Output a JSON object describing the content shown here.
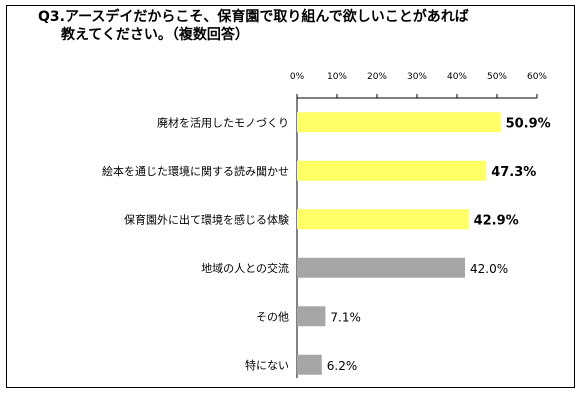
{
  "title_line1": "Q3.アースデイだからこそ、保育園で取り組んで欲しいことがあれば",
  "title_line2": "教えてください。（複数回答）",
  "chart_data": {
    "type": "bar",
    "orientation": "horizontal",
    "title": "Q3.アースデイだからこそ、保育園で取り組んで欲しいことがあれば教えてください。（複数回答）",
    "categories": [
      "廃材を活用したモノづくり",
      "絵本を通じた環境に関する読み聞かせ",
      "保育園外に出て環境を感じる体験",
      "地域の人との交流",
      "その他",
      "特にない"
    ],
    "values": [
      50.9,
      47.3,
      42.9,
      42.0,
      7.1,
      6.2
    ],
    "value_labels": [
      "50.9%",
      "47.3%",
      "42.9%",
      "42.0%",
      "7.1%",
      "6.2%"
    ],
    "highlight": [
      true,
      true,
      true,
      false,
      false,
      false
    ],
    "xlim": [
      0,
      60
    ],
    "xticks": [
      0,
      10,
      20,
      30,
      40,
      50,
      60
    ],
    "xtick_labels": [
      "0%",
      "10%",
      "20%",
      "30%",
      "40%",
      "50%",
      "60%"
    ],
    "axis_position": "top",
    "grid": false,
    "colors": {
      "highlight": "#ffff66",
      "normal": "#a6a6a6",
      "axis": "#000000"
    }
  }
}
